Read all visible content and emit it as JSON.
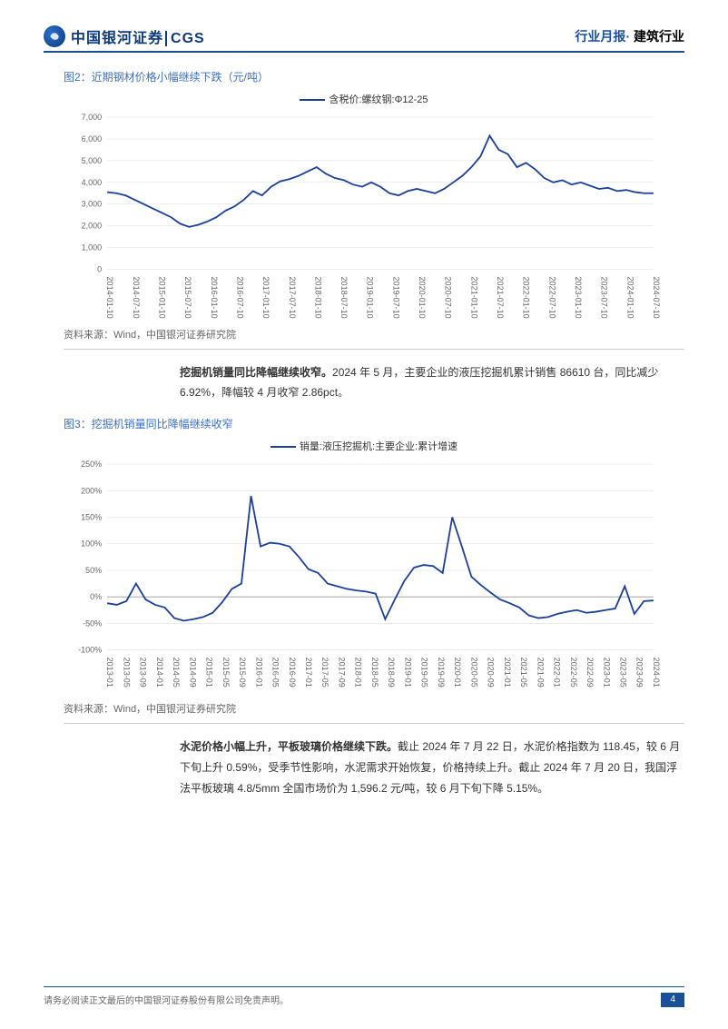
{
  "header": {
    "brand_cn": "中国银河证券",
    "brand_en": "CGS",
    "report_type": "行业月报",
    "industry": "建筑行业",
    "accent_color": "#1a4f9c"
  },
  "fig2": {
    "title": "图2：近期钢材价格小幅继续下跌（元/吨）",
    "legend": "含税价:螺纹钢:Φ12-25",
    "type": "line",
    "line_color": "#1a3f9c",
    "line_width": 1.8,
    "background_color": "#ffffff",
    "grid_color": "#d9d9d9",
    "ylim": [
      0,
      7000
    ],
    "ytick_step": 1000,
    "yticks": [
      "0",
      "1,000",
      "2,000",
      "3,000",
      "4,000",
      "5,000",
      "6,000",
      "7,000"
    ],
    "xtick_labels": [
      "2014-01-10",
      "2014-07-10",
      "2015-01-10",
      "2015-07-10",
      "2016-01-10",
      "2016-07-10",
      "2017-01-10",
      "2017-07-10",
      "2018-01-10",
      "2018-07-10",
      "2019-01-10",
      "2019-07-10",
      "2020-01-10",
      "2020-07-10",
      "2021-01-10",
      "2021-07-10",
      "2022-01-10",
      "2022-07-10",
      "2023-01-10",
      "2023-07-10",
      "2024-01-10",
      "2024-07-10"
    ],
    "label_fontsize": 9,
    "series_values": [
      3550,
      3500,
      3400,
      3200,
      3000,
      2800,
      2600,
      2400,
      2100,
      1950,
      2050,
      2200,
      2400,
      2700,
      2900,
      3200,
      3600,
      3400,
      3800,
      4050,
      4150,
      4300,
      4500,
      4700,
      4400,
      4200,
      4100,
      3900,
      3800,
      4000,
      3800,
      3500,
      3400,
      3600,
      3700,
      3600,
      3500,
      3700,
      4000,
      4300,
      4700,
      5200,
      6150,
      5500,
      5300,
      4700,
      4900,
      4600,
      4200,
      4000,
      4100,
      3900,
      4000,
      3850,
      3700,
      3750,
      3600,
      3650,
      3550,
      3500,
      3500
    ],
    "source": "资料来源：Wind，中国银河证券研究院"
  },
  "para1": {
    "bold": "挖掘机销量同比降幅继续收窄。",
    "text": "2024 年 5 月，主要企业的液压挖掘机累计销售 86610 台，同比减少 6.92%，降幅较 4 月收窄 2.86pct。"
  },
  "fig3": {
    "title": "图3：挖掘机销量同比降幅继续收窄",
    "legend": "销量:液压挖掘机:主要企业:累计增速",
    "type": "line",
    "line_color": "#1a3f9c",
    "line_width": 1.8,
    "background_color": "#ffffff",
    "grid_color": "#d9d9d9",
    "ylim": [
      -100,
      250
    ],
    "ytick_step": 50,
    "yticks": [
      "-100%",
      "-50%",
      "0%",
      "50%",
      "100%",
      "150%",
      "200%",
      "250%"
    ],
    "xtick_labels": [
      "2013-01",
      "2013-05",
      "2013-09",
      "2014-01",
      "2014-05",
      "2014-09",
      "2015-01",
      "2015-05",
      "2015-09",
      "2016-01",
      "2016-05",
      "2016-09",
      "2017-01",
      "2017-05",
      "2017-09",
      "2018-01",
      "2018-05",
      "2018-09",
      "2019-01",
      "2019-05",
      "2019-09",
      "2020-01",
      "2020-05",
      "2020-09",
      "2021-01",
      "2021-05",
      "2021-09",
      "2022-01",
      "2022-05",
      "2022-09",
      "2023-01",
      "2023-05",
      "2023-09",
      "2024-01"
    ],
    "label_fontsize": 9,
    "series_values": [
      -12,
      -15,
      -8,
      25,
      -5,
      -15,
      -20,
      -40,
      -45,
      -42,
      -38,
      -30,
      -10,
      15,
      25,
      190,
      95,
      102,
      100,
      95,
      75,
      52,
      45,
      25,
      20,
      15,
      12,
      10,
      6,
      -42,
      -5,
      30,
      55,
      60,
      58,
      45,
      150,
      95,
      38,
      22,
      8,
      -5,
      -12,
      -20,
      -35,
      -40,
      -38,
      -32,
      -28,
      -25,
      -30,
      -28,
      -25,
      -22,
      20,
      -32,
      -8,
      -6.9
    ],
    "source": "资料来源：Wind，中国银河证券研究院"
  },
  "para2": {
    "bold": "水泥价格小幅上升，平板玻璃价格继续下跌。",
    "text": "截止 2024 年 7 月 22 日，水泥价格指数为 118.45，较 6 月下旬上升 0.59%，受季节性影响，水泥需求开始恢复，价格持续上升。截止 2024 年 7 月 20 日，我国浮法平板玻璃 4.8/5mm 全国市场价为 1,596.2 元/吨，较 6 月下旬下降 5.15%。"
  },
  "footer": {
    "disclaimer": "请务必阅读正文最后的中国银河证券股份有限公司免责声明。",
    "page_num": "4"
  }
}
